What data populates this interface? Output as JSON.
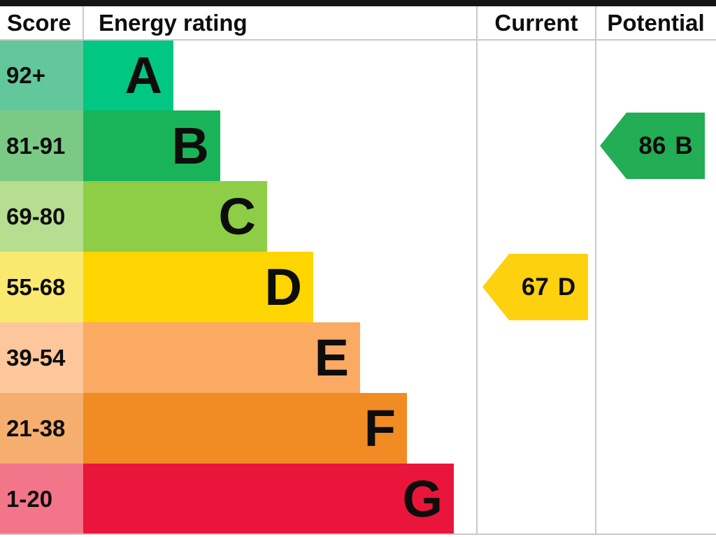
{
  "header": {
    "score": "Score",
    "rating": "Energy rating",
    "current": "Current",
    "potential": "Potential"
  },
  "chart_data": {
    "type": "bar",
    "subtype": "epc-energy-rating-chart",
    "columns": [
      "Score",
      "Energy rating",
      "Current",
      "Potential"
    ],
    "bands": [
      {
        "letter": "A",
        "score_range": "92+",
        "color": "#00c781",
        "tint": "#63c79c"
      },
      {
        "letter": "B",
        "score_range": "81-91",
        "color": "#19b459",
        "tint": "#7aca85"
      },
      {
        "letter": "C",
        "score_range": "69-80",
        "color": "#8dce46",
        "tint": "#b6de90"
      },
      {
        "letter": "D",
        "score_range": "55-68",
        "color": "#ffd500",
        "tint": "#fae96f"
      },
      {
        "letter": "E",
        "score_range": "39-54",
        "color": "#fbaa63",
        "tint": "#fdc79b"
      },
      {
        "letter": "F",
        "score_range": "21-38",
        "color": "#f18b24",
        "tint": "#f5ae6e"
      },
      {
        "letter": "G",
        "score_range": "1-20",
        "color": "#e9153b",
        "tint": "#f3758a"
      }
    ],
    "current": {
      "value": "67",
      "band": "D",
      "color": "#fed10e"
    },
    "potential": {
      "value": "86",
      "band": "B",
      "color": "#23ad55"
    },
    "layout_hints": {
      "bars": "stair-step increasing width A to G",
      "arrows_point": "left"
    }
  }
}
